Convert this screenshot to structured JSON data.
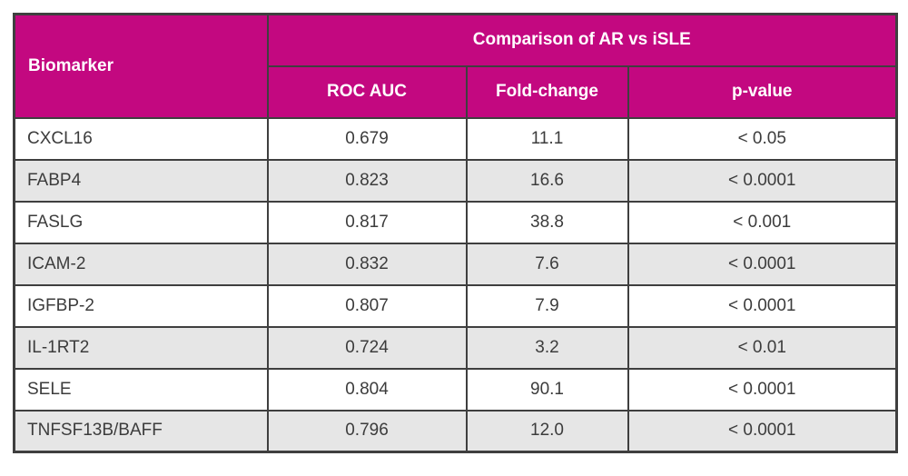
{
  "table": {
    "corner_header": "Biomarker",
    "group_header": "Comparison of AR vs iSLE",
    "sub_headers": [
      "ROC AUC",
      "Fold-change",
      "p-value"
    ],
    "rows": [
      {
        "biomarker": "CXCL16",
        "roc_auc": "0.679",
        "fold_change": "11.1",
        "p_value": "< 0.05"
      },
      {
        "biomarker": "FABP4",
        "roc_auc": "0.823",
        "fold_change": "16.6",
        "p_value": "< 0.0001"
      },
      {
        "biomarker": "FASLG",
        "roc_auc": "0.817",
        "fold_change": "38.8",
        "p_value": "< 0.001"
      },
      {
        "biomarker": "ICAM-2",
        "roc_auc": "0.832",
        "fold_change": "7.6",
        "p_value": "< 0.0001"
      },
      {
        "biomarker": "IGFBP-2",
        "roc_auc": "0.807",
        "fold_change": "7.9",
        "p_value": "< 0.0001"
      },
      {
        "biomarker": "IL-1RT2",
        "roc_auc": "0.724",
        "fold_change": "3.2",
        "p_value": "< 0.01"
      },
      {
        "biomarker": "SELE",
        "roc_auc": "0.804",
        "fold_change": "90.1",
        "p_value": "< 0.0001"
      },
      {
        "biomarker": "TNFSF13B/BAFF",
        "roc_auc": "0.796",
        "fold_change": "12.0",
        "p_value": "< 0.0001"
      }
    ]
  },
  "chart_data": {
    "type": "table",
    "title": "Comparison of AR vs iSLE",
    "columns": [
      "Biomarker",
      "ROC AUC",
      "Fold-change",
      "p-value"
    ],
    "rows": [
      [
        "CXCL16",
        0.679,
        11.1,
        "< 0.05"
      ],
      [
        "FABP4",
        0.823,
        16.6,
        "< 0.0001"
      ],
      [
        "FASLG",
        0.817,
        38.8,
        "< 0.001"
      ],
      [
        "ICAM-2",
        0.832,
        7.6,
        "< 0.0001"
      ],
      [
        "IGFBP-2",
        0.807,
        7.9,
        "< 0.0001"
      ],
      [
        "IL-1RT2",
        0.724,
        3.2,
        "< 0.01"
      ],
      [
        "SELE",
        0.804,
        90.1,
        "< 0.0001"
      ],
      [
        "TNFSF13B/BAFF",
        0.796,
        12.0,
        "< 0.0001"
      ]
    ]
  },
  "colors": {
    "header_bg": "#c30880",
    "header_text": "#ffffff",
    "border": "#3f3f3f",
    "row_alt_bg": "#e6e6e6",
    "cell_text": "#3c3c3c",
    "page_bg": "#ffffff"
  }
}
